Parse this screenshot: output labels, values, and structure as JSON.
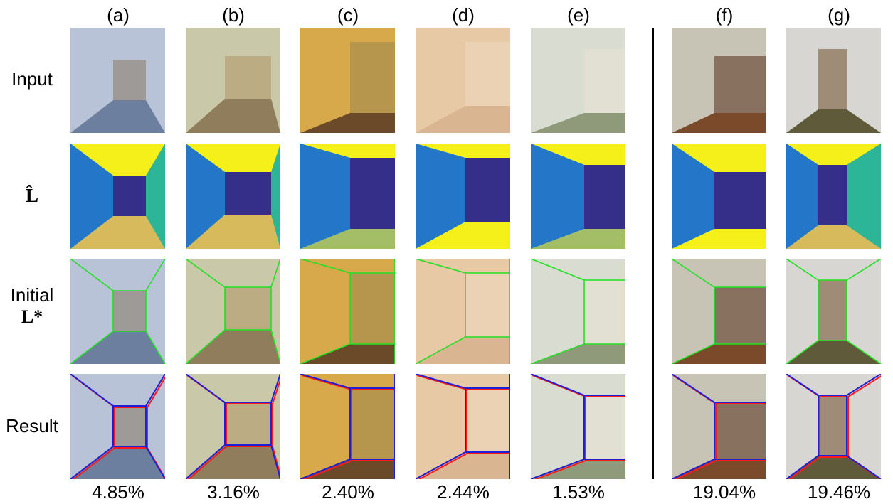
{
  "columns": [
    "(a)",
    "(b)",
    "(c)",
    "(d)",
    "(e)",
    "(f)",
    "(g)"
  ],
  "rows": {
    "input": "Input",
    "lhat": "L̂",
    "initial_line1": "Initial",
    "initial_line2": "L*",
    "result": "Result"
  },
  "errors": [
    "4.85%",
    "3.16%",
    "2.40%",
    "2.44%",
    "1.53%",
    "19.04%",
    "19.46%"
  ],
  "colors": {
    "wall_front": "#352f8a",
    "wall_left": "#2476c9",
    "wall_right": "#2db598",
    "wall_right_alt": "#0f9ecf",
    "ceiling": "#f6f01a",
    "floor": "#d7ba5c",
    "floor_alt": "#a3be67",
    "initial_line": "#22e022",
    "gt_line": "#ff1a1a",
    "pred_line": "#1f1fd6"
  }
}
